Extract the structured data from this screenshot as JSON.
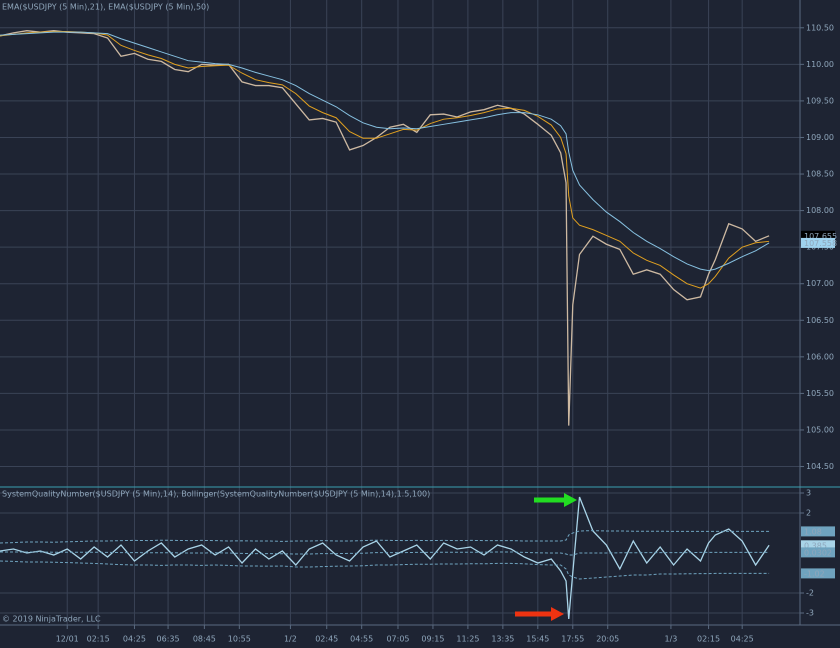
{
  "chart_data": [
    {
      "type": "line",
      "title": "EMA($USDJPY (5 Min),21), EMA($USDJPY (5 Min),50)",
      "xlim": [
        0,
        595
      ],
      "ylim": [
        104.22,
        110.88
      ],
      "yticks": [
        {
          "value": 104.5,
          "label": "104.50"
        },
        {
          "value": 105,
          "label": "105.00"
        },
        {
          "value": 105.5,
          "label": "105.50"
        },
        {
          "value": 106,
          "label": "106.00"
        },
        {
          "value": 106.5,
          "label": "106.50"
        },
        {
          "value": 107,
          "label": "107.00"
        },
        {
          "value": 107.5,
          "label": "107.50"
        },
        {
          "value": 108,
          "label": "108.00"
        },
        {
          "value": 108.5,
          "label": "108.50"
        },
        {
          "value": 109,
          "label": "109.00"
        },
        {
          "value": 109.5,
          "label": "109.50"
        },
        {
          "value": 110,
          "label": "110.00"
        },
        {
          "value": 110.5,
          "label": "110.50"
        }
      ],
      "grid": true,
      "x": [
        0,
        10,
        20,
        30,
        40,
        50,
        60,
        70,
        80,
        90,
        100,
        110,
        120,
        130,
        140,
        150,
        160,
        170,
        180,
        190,
        200,
        210,
        220,
        230,
        240,
        250,
        260,
        270,
        280,
        290,
        300,
        310,
        320,
        330,
        340,
        350,
        360,
        370,
        380,
        390,
        400,
        410,
        417,
        421,
        423,
        426,
        431,
        441,
        451,
        461,
        471,
        481,
        491,
        501,
        511,
        521,
        527,
        532,
        542,
        552,
        562,
        572
      ],
      "series": [
        {
          "name": "$USDJPY (5 Min)",
          "color": "#cdb9a2",
          "tag_color": "#000000",
          "values": [
            110.39,
            110.43,
            110.46,
            110.44,
            110.46,
            110.44,
            110.43,
            110.42,
            110.36,
            110.11,
            110.15,
            110.07,
            110.04,
            109.93,
            109.9,
            110.0,
            109.99,
            110.0,
            109.76,
            109.71,
            109.71,
            109.68,
            109.46,
            109.24,
            109.26,
            109.21,
            108.83,
            108.89,
            109.0,
            109.14,
            109.18,
            109.07,
            109.31,
            109.32,
            109.28,
            109.35,
            109.38,
            109.44,
            109.4,
            109.32,
            109.18,
            109.03,
            108.79,
            108.38,
            105.06,
            106.71,
            107.4,
            107.65,
            107.54,
            107.47,
            107.13,
            107.19,
            107.13,
            106.92,
            106.78,
            106.82,
            107.13,
            107.33,
            107.82,
            107.75,
            107.58,
            107.655
          ]
        },
        {
          "name": "EMA($USDJPY (5 Min),21)",
          "color": "#e0a020",
          "values": [
            110.39,
            110.41,
            110.43,
            110.44,
            110.45,
            110.45,
            110.44,
            110.43,
            110.4,
            110.26,
            110.19,
            110.13,
            110.08,
            110.0,
            109.95,
            109.97,
            109.98,
            109.99,
            109.88,
            109.79,
            109.75,
            109.72,
            109.6,
            109.43,
            109.34,
            109.27,
            109.08,
            108.99,
            108.99,
            109.05,
            109.11,
            109.1,
            109.19,
            109.25,
            109.27,
            109.3,
            109.34,
            109.39,
            109.4,
            109.37,
            109.29,
            109.17,
            109.0,
            108.78,
            108.2,
            107.9,
            107.8,
            107.74,
            107.66,
            107.58,
            107.42,
            107.32,
            107.25,
            107.12,
            107.0,
            106.94,
            107.0,
            107.1,
            107.35,
            107.5,
            107.56,
            107.58
          ]
        },
        {
          "name": "EMA($USDJPY (5 Min),50)",
          "color": "#86c0e0",
          "tag_color": "#9fd2ee",
          "values": [
            110.4,
            110.41,
            110.42,
            110.43,
            110.44,
            110.44,
            110.44,
            110.43,
            110.42,
            110.35,
            110.29,
            110.23,
            110.17,
            110.11,
            110.05,
            110.03,
            110.01,
            110.0,
            109.95,
            109.89,
            109.84,
            109.79,
            109.71,
            109.6,
            109.51,
            109.42,
            109.3,
            109.2,
            109.14,
            109.12,
            109.13,
            109.12,
            109.15,
            109.18,
            109.21,
            109.24,
            109.27,
            109.31,
            109.34,
            109.34,
            109.31,
            109.25,
            109.16,
            109.05,
            108.8,
            108.55,
            108.35,
            108.15,
            107.98,
            107.85,
            107.7,
            107.58,
            107.48,
            107.37,
            107.27,
            107.2,
            107.18,
            107.2,
            107.28,
            107.37,
            107.45,
            107.558
          ]
        }
      ]
    },
    {
      "type": "line",
      "title": "SystemQualityNumber($USDJPY (5 Min),14), Bollinger(SystemQualityNumber($USDJPY (5 Min),14),1.5,100)",
      "xlim": [
        0,
        595
      ],
      "ylim": [
        -3.6,
        3.3
      ],
      "yticks": [
        -3,
        -2,
        2,
        3
      ],
      "grid": true,
      "xticks": [
        {
          "value": 50,
          "label": "12/01"
        },
        {
          "value": 73,
          "label": "02:15"
        },
        {
          "value": 100,
          "label": "04:25"
        },
        {
          "value": 125,
          "label": "06:35"
        },
        {
          "value": 152,
          "label": "08:45"
        },
        {
          "value": 178,
          "label": "10:55"
        },
        {
          "value": 216,
          "label": "1/2"
        },
        {
          "value": 243,
          "label": "02:45"
        },
        {
          "value": 269,
          "label": "04:55"
        },
        {
          "value": 296,
          "label": "07:05"
        },
        {
          "value": 322,
          "label": "09:15"
        },
        {
          "value": 348,
          "label": "11:25"
        },
        {
          "value": 374,
          "label": "13:35"
        },
        {
          "value": 400,
          "label": "15:45"
        },
        {
          "value": 426,
          "label": "17:55"
        },
        {
          "value": 452,
          "label": "20:05"
        },
        {
          "value": 499,
          "label": "1/3"
        },
        {
          "value": 527,
          "label": "02:15"
        },
        {
          "value": 552,
          "label": "04:25"
        }
      ],
      "footer": "© 2019 NinjaTrader, LLC",
      "x": [
        0,
        10,
        20,
        30,
        40,
        50,
        60,
        70,
        80,
        90,
        100,
        110,
        120,
        130,
        140,
        150,
        160,
        170,
        180,
        190,
        200,
        210,
        220,
        230,
        240,
        250,
        260,
        270,
        280,
        290,
        300,
        310,
        320,
        330,
        340,
        350,
        360,
        370,
        380,
        390,
        400,
        410,
        417,
        421,
        423,
        426,
        431,
        441,
        451,
        461,
        471,
        481,
        491,
        501,
        511,
        521,
        527,
        532,
        542,
        552,
        562,
        572
      ],
      "series": [
        {
          "name": "SystemQualityNumber",
          "color": "#a9d4e8",
          "tag_color": "#a9d4e8",
          "values": [
            0.1,
            0.2,
            0.0,
            0.1,
            -0.1,
            0.2,
            -0.3,
            0.3,
            -0.2,
            0.4,
            -0.4,
            0.1,
            0.5,
            -0.2,
            0.2,
            0.4,
            -0.1,
            0.3,
            -0.5,
            0.2,
            -0.3,
            0.1,
            -0.6,
            0.2,
            0.5,
            -0.1,
            -0.4,
            0.3,
            0.6,
            -0.2,
            0.1,
            0.4,
            -0.3,
            0.5,
            0.2,
            0.3,
            -0.1,
            0.4,
            0.2,
            -0.2,
            -0.5,
            -0.3,
            -0.9,
            -1.4,
            -3.3,
            -1.0,
            2.8,
            1.1,
            0.4,
            -0.8,
            0.6,
            -0.5,
            0.3,
            -0.6,
            0.2,
            -0.4,
            0.5,
            0.9,
            1.2,
            0.6,
            -0.6,
            0.385
          ]
        },
        {
          "name": "Bollinger Upper",
          "color": "#6fa3bf",
          "dashed": true,
          "tag_color": "#6fa3bf",
          "values": [
            0.5,
            0.52,
            0.55,
            0.55,
            0.54,
            0.56,
            0.58,
            0.6,
            0.6,
            0.62,
            0.63,
            0.62,
            0.64,
            0.63,
            0.62,
            0.63,
            0.62,
            0.6,
            0.61,
            0.6,
            0.6,
            0.58,
            0.6,
            0.6,
            0.62,
            0.6,
            0.6,
            0.62,
            0.64,
            0.63,
            0.62,
            0.63,
            0.62,
            0.63,
            0.62,
            0.63,
            0.62,
            0.62,
            0.62,
            0.6,
            0.6,
            0.6,
            0.6,
            0.65,
            0.9,
            1.0,
            1.1,
            1.12,
            1.1,
            1.1,
            1.09,
            1.09,
            1.09,
            1.08,
            1.08,
            1.08,
            1.08,
            1.08,
            1.08,
            1.08,
            1.08,
            1.08
          ]
        },
        {
          "name": "Bollinger Middle",
          "color": "#6fa3bf",
          "dashed": true,
          "tag_color": "#6fa3bf",
          "values": [
            0.05,
            0.05,
            0.05,
            0.05,
            0.04,
            0.04,
            0.04,
            0.04,
            0.03,
            0.02,
            0.02,
            0.01,
            0.01,
            0.01,
            0.0,
            0.0,
            0.01,
            0.0,
            -0.02,
            -0.03,
            -0.03,
            -0.04,
            -0.05,
            -0.05,
            -0.03,
            -0.03,
            -0.02,
            -0.01,
            0.02,
            0.02,
            0.02,
            0.03,
            0.03,
            0.04,
            0.04,
            0.04,
            0.04,
            0.05,
            0.05,
            0.03,
            0.01,
            0.0,
            0.0,
            -0.05,
            -0.1,
            -0.1,
            0.0,
            0.0,
            0.0,
            0.01,
            0.01,
            0.02,
            0.02,
            0.02,
            0.02,
            0.03,
            0.03,
            0.03,
            0.03,
            0.03,
            0.03,
            0.0302
          ]
        },
        {
          "name": "Bollinger Lower",
          "color": "#6fa3bf",
          "dashed": true,
          "tag_color": "#6fa3bf",
          "values": [
            -0.4,
            -0.42,
            -0.45,
            -0.45,
            -0.46,
            -0.48,
            -0.5,
            -0.52,
            -0.55,
            -0.58,
            -0.6,
            -0.6,
            -0.62,
            -0.6,
            -0.6,
            -0.62,
            -0.6,
            -0.62,
            -0.65,
            -0.65,
            -0.66,
            -0.65,
            -0.7,
            -0.7,
            -0.68,
            -0.66,
            -0.65,
            -0.64,
            -0.6,
            -0.6,
            -0.58,
            -0.56,
            -0.56,
            -0.55,
            -0.55,
            -0.54,
            -0.54,
            -0.52,
            -0.52,
            -0.54,
            -0.58,
            -0.6,
            -0.6,
            -0.8,
            -1.1,
            -1.2,
            -1.3,
            -1.25,
            -1.2,
            -1.15,
            -1.1,
            -1.1,
            -1.05,
            -1.05,
            -1.04,
            -1.03,
            -1.03,
            -1.02,
            -1.02,
            -1.02,
            -1.02,
            -1.02
          ]
        }
      ]
    }
  ]
}
